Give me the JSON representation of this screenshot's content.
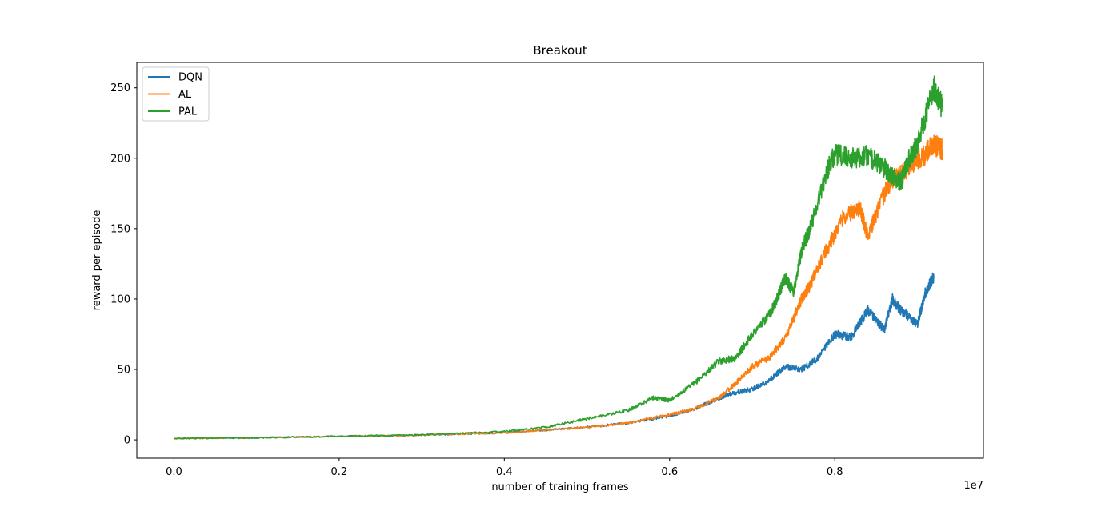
{
  "chart_data": {
    "type": "line",
    "title": "Breakout",
    "xlabel": "number of training frames",
    "ylabel": "reward per episode",
    "x_offset_label": "1e7",
    "xlim": [
      -0.045,
      0.98
    ],
    "ylim": [
      -13,
      268
    ],
    "xticks": [
      0.0,
      0.2,
      0.4,
      0.6,
      0.8
    ],
    "xtick_labels": [
      "0.0",
      "0.2",
      "0.4",
      "0.6",
      "0.8"
    ],
    "yticks": [
      0,
      50,
      100,
      150,
      200,
      250
    ],
    "ytick_labels": [
      "0",
      "50",
      "100",
      "150",
      "200",
      "250"
    ],
    "grid": false,
    "legend_position": "upper-left",
    "series": [
      {
        "name": "DQN",
        "color": "#1f77b4",
        "x": [
          0.0,
          0.1,
          0.2,
          0.3,
          0.4,
          0.45,
          0.5,
          0.55,
          0.6,
          0.63,
          0.65,
          0.67,
          0.7,
          0.72,
          0.74,
          0.76,
          0.78,
          0.8,
          0.82,
          0.84,
          0.86,
          0.87,
          0.88,
          0.9,
          0.91,
          0.92
        ],
        "y": [
          1,
          1.5,
          2.5,
          3.5,
          5,
          7,
          9,
          12,
          17,
          22,
          27,
          32,
          36,
          42,
          52,
          50,
          58,
          75,
          73,
          92,
          78,
          100,
          92,
          82,
          105,
          116
        ]
      },
      {
        "name": "AL",
        "color": "#ff7f0e",
        "x": [
          0.0,
          0.1,
          0.2,
          0.3,
          0.4,
          0.45,
          0.5,
          0.55,
          0.6,
          0.63,
          0.66,
          0.68,
          0.7,
          0.72,
          0.74,
          0.76,
          0.77,
          0.79,
          0.81,
          0.83,
          0.84,
          0.86,
          0.87,
          0.88,
          0.89,
          0.91,
          0.92,
          0.93
        ],
        "y": [
          1,
          1.5,
          2.5,
          3.5,
          5,
          7,
          9,
          12,
          18,
          22,
          30,
          40,
          52,
          58,
          72,
          100,
          110,
          135,
          158,
          165,
          145,
          175,
          185,
          188,
          195,
          203,
          210,
          206
        ]
      },
      {
        "name": "PAL",
        "color": "#2ca02c",
        "x": [
          0.0,
          0.1,
          0.2,
          0.3,
          0.4,
          0.45,
          0.5,
          0.55,
          0.58,
          0.6,
          0.63,
          0.66,
          0.68,
          0.7,
          0.72,
          0.73,
          0.74,
          0.75,
          0.76,
          0.77,
          0.79,
          0.8,
          0.82,
          0.84,
          0.86,
          0.87,
          0.88,
          0.89,
          0.9,
          0.92,
          0.93
        ],
        "y": [
          1,
          1.5,
          2.5,
          3.5,
          6,
          9,
          15,
          21,
          30,
          28,
          40,
          56,
          58,
          75,
          88,
          100,
          115,
          105,
          135,
          150,
          190,
          203,
          200,
          202,
          193,
          188,
          183,
          200,
          210,
          250,
          236
        ]
      }
    ]
  }
}
